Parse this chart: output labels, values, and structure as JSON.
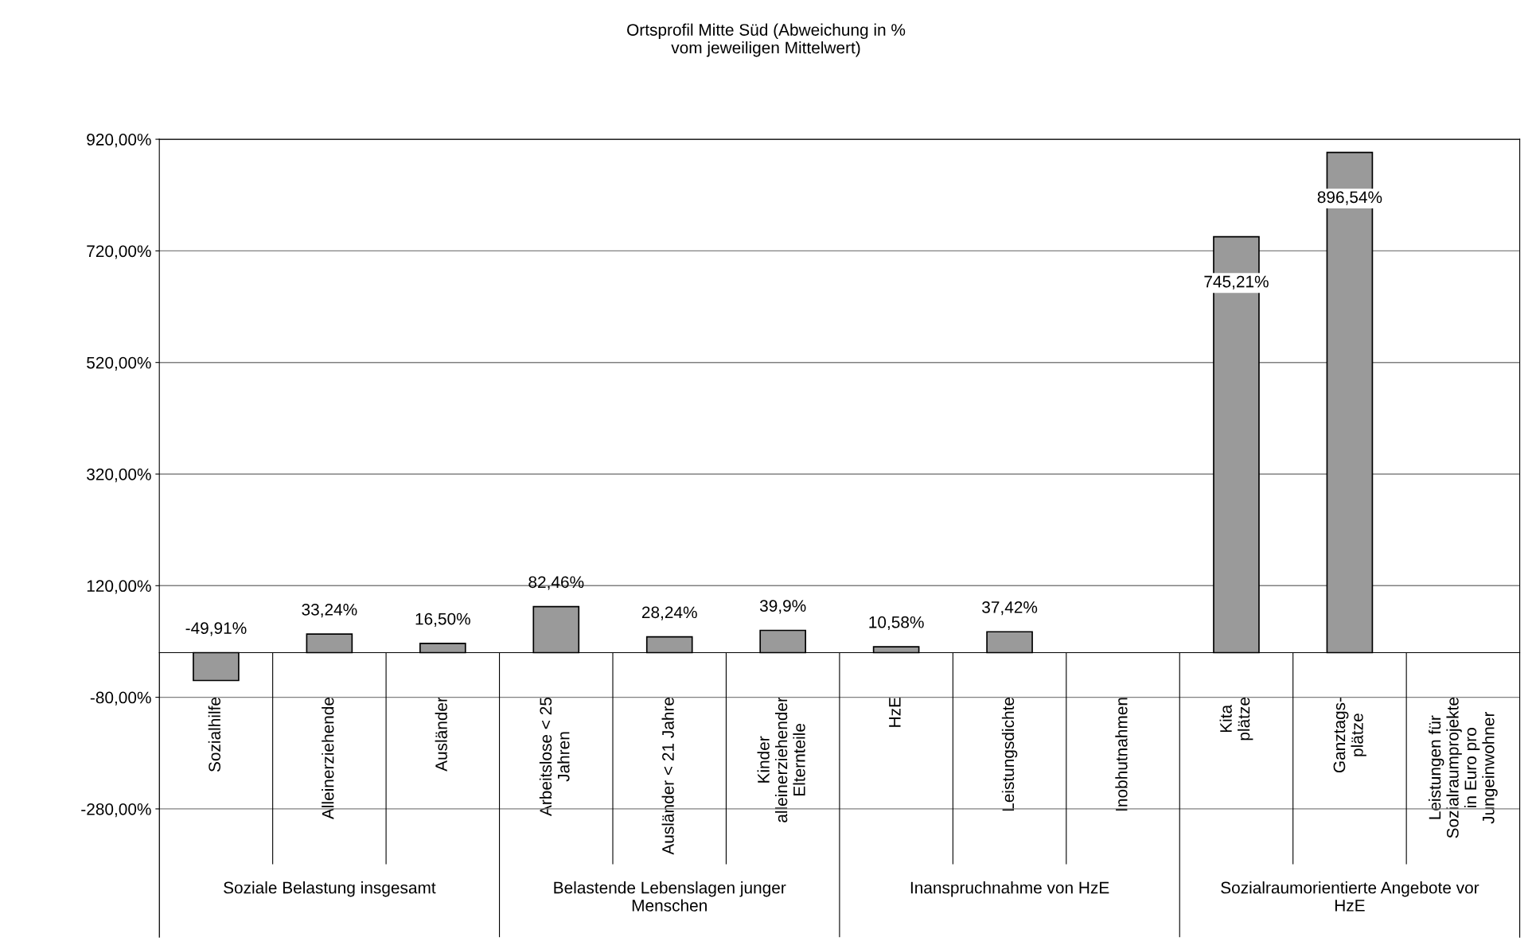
{
  "chart_data": {
    "type": "bar",
    "title": "Ortsprofil Mitte Süd (Abweichung in %\nvom jeweiligen Mittelwert)",
    "categories": [
      "Sozialhilfe",
      "Alleinerziehende",
      "Ausländer",
      "Arbeitslose < 25\nJahren",
      "Ausländer < 21 Jahre",
      "Kinder\nalleinerziehender\nElternteile",
      "HzE",
      "Leistungsdichte",
      "Inobhutnahmen",
      "Kita\nplätze",
      "Ganztags-\nplätze",
      "Leistungen für\nSozialraumprojekte\nin Euro pro\nJungeinwohner"
    ],
    "values": [
      -49.91,
      33.24,
      16.5,
      82.46,
      28.24,
      39.9,
      10.58,
      37.42,
      null,
      745.21,
      896.54,
      null
    ],
    "value_labels": [
      "-49,91%",
      "33,24%",
      "16,50%",
      "82,46%",
      "28,24%",
      "39,9%",
      "10,58%",
      "37,42%",
      null,
      "745,21%",
      "896,54%",
      null
    ],
    "color": "#9a9a9a",
    "annotations": [
      "Soziale Belastung insgesamt",
      "Belastende Lebenslagen junger\nMenschen",
      "Inanspruchnahme von HzE",
      "Sozialraumorientierte Angebote vor\nHzE"
    ],
    "ylim": [
      -510,
      920
    ],
    "yticks": [
      {
        "value": -280,
        "label": "-280,00%"
      },
      {
        "value": -80,
        "label": "-80,00%"
      },
      {
        "value": 120,
        "label": "120,00%"
      },
      {
        "value": 320,
        "label": "320,00%"
      },
      {
        "value": 520,
        "label": "520,00%"
      },
      {
        "value": 720,
        "label": "720,00%"
      },
      {
        "value": 920,
        "label": "920,00%"
      }
    ],
    "grid": "y",
    "legend": false
  }
}
